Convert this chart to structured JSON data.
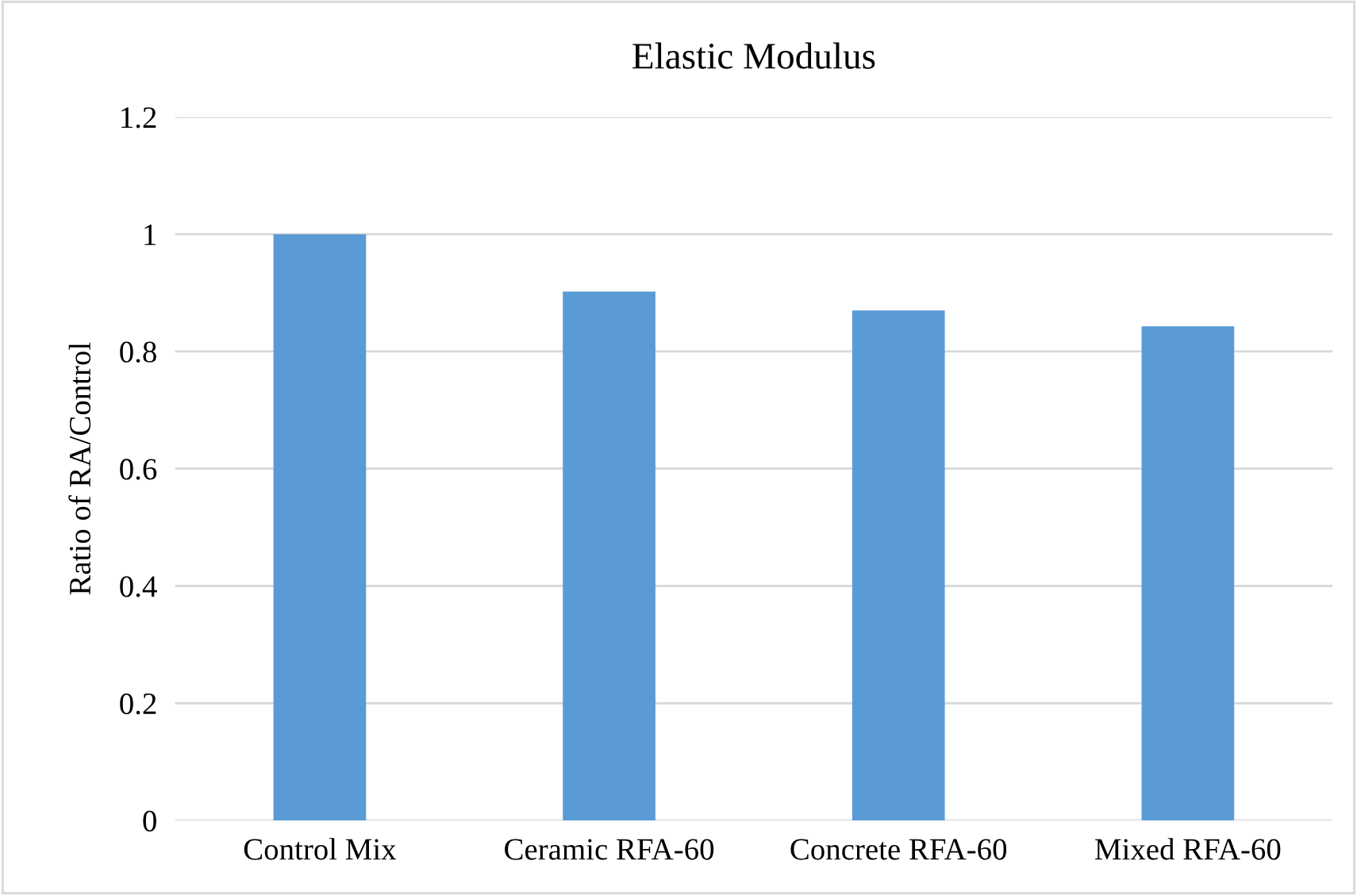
{
  "chart_data": {
    "type": "bar",
    "title": "Elastic Modulus",
    "ylabel": "Ratio of RA/Control",
    "categories": [
      "Control Mix",
      "Ceramic RFA-60",
      "Concrete RFA-60",
      "Mixed RFA-60"
    ],
    "values": [
      1.0,
      0.902,
      0.87,
      0.843
    ],
    "color": "#5b9bd5",
    "ylim": [
      0,
      1.2
    ],
    "yticks": [
      0,
      0.2,
      0.4,
      0.6,
      0.8,
      1,
      1.2
    ],
    "grid": "y",
    "legend": false
  }
}
